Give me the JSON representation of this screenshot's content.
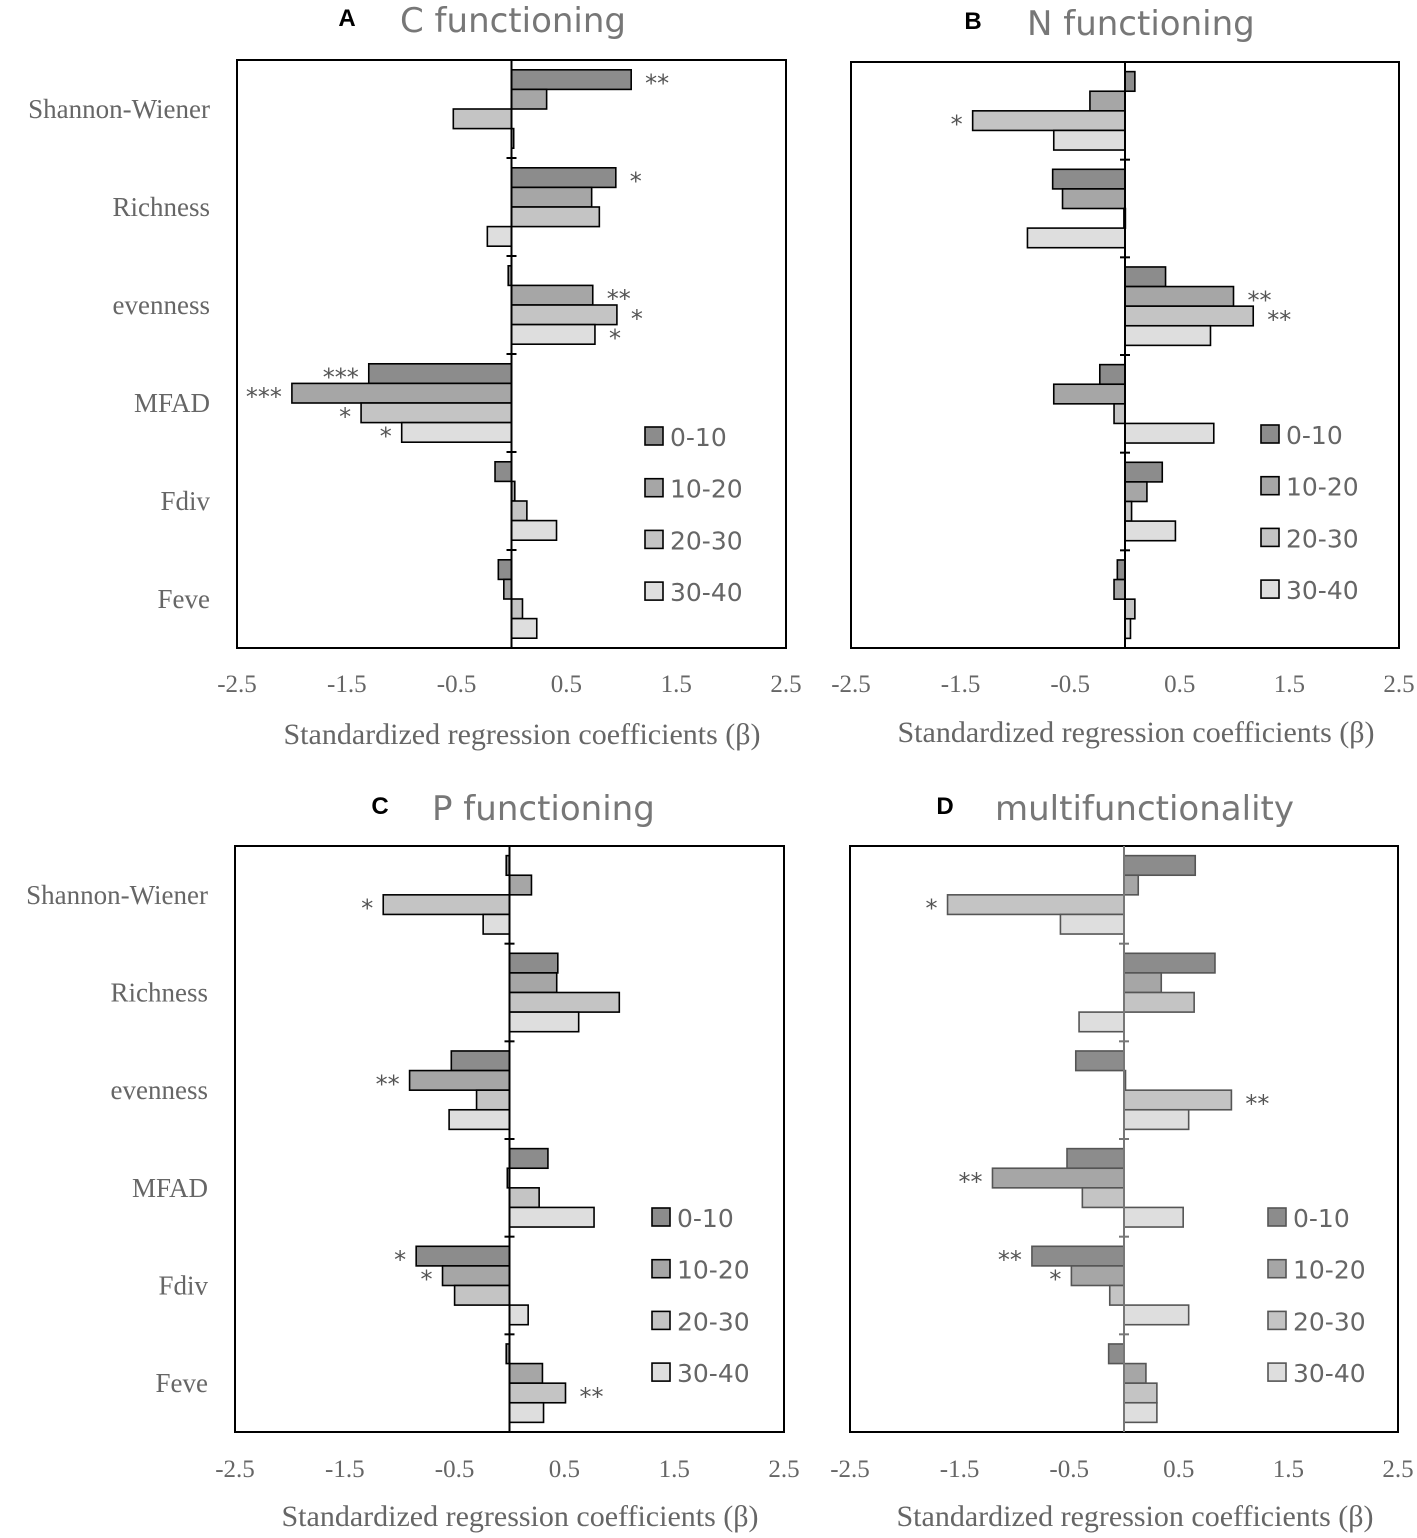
{
  "colors": {
    "series": [
      "#8c8c8c",
      "#a6a6a6",
      "#c4c4c4",
      "#dedede"
    ],
    "axis": "#000000",
    "axis_panel_d": "#777777",
    "text": "#666666"
  },
  "chart_data": [
    {
      "type": "bar",
      "orientation": "horizontal",
      "panel": "A",
      "title": "C functioning",
      "xlabel": "Standardized regression coefficients (β)",
      "xlim": [
        -2.5,
        2.5
      ],
      "xticks": [
        "-2.5",
        "-1.5",
        "-0.5",
        "0.5",
        "1.5",
        "2.5"
      ],
      "categories": [
        "Shannon-Wiener",
        "Richness",
        "evenness",
        "MFAD",
        "Fdiv",
        "Feve"
      ],
      "legend": [
        "0-10",
        "10-20",
        "20-30",
        "30-40"
      ],
      "series": [
        {
          "name": "0-10",
          "values": [
            1.09,
            0.95,
            -0.03,
            -1.3,
            -0.15,
            -0.12
          ]
        },
        {
          "name": "10-20",
          "values": [
            0.32,
            0.73,
            0.74,
            -2.0,
            0.03,
            -0.07
          ]
        },
        {
          "name": "20-30",
          "values": [
            -0.53,
            0.8,
            0.96,
            -1.37,
            0.14,
            0.1
          ]
        },
        {
          "name": "30-40",
          "values": [
            0.02,
            -0.22,
            0.76,
            -1.0,
            0.41,
            0.23
          ]
        }
      ],
      "significance": [
        [
          "**",
          "*",
          "",
          "***",
          "",
          ""
        ],
        [
          "",
          "",
          "**",
          "***",
          "",
          ""
        ],
        [
          "",
          "",
          "*",
          "*",
          "",
          ""
        ],
        [
          "",
          "",
          "*",
          "*",
          "",
          ""
        ]
      ]
    },
    {
      "type": "bar",
      "orientation": "horizontal",
      "panel": "B",
      "title": "N functioning",
      "xlabel": "Standardized regression coefficients (β)",
      "xlim": [
        -2.5,
        2.5
      ],
      "xticks": [
        "-2.5",
        "-1.5",
        "-0.5",
        "0.5",
        "1.5",
        "2.5"
      ],
      "categories": [
        "Shannon-Wiener",
        "Richness",
        "evenness",
        "MFAD",
        "Fdiv",
        "Feve"
      ],
      "legend": [
        "0-10",
        "10-20",
        "20-30",
        "30-40"
      ],
      "series": [
        {
          "name": "0-10",
          "values": [
            0.09,
            -0.66,
            0.37,
            -0.23,
            0.34,
            -0.07
          ]
        },
        {
          "name": "10-20",
          "values": [
            -0.32,
            -0.57,
            0.99,
            -0.65,
            0.2,
            -0.1
          ]
        },
        {
          "name": "20-30",
          "values": [
            -1.39,
            -0.01,
            1.17,
            -0.1,
            0.06,
            0.09
          ]
        },
        {
          "name": "30-40",
          "values": [
            -0.65,
            -0.89,
            0.78,
            0.81,
            0.46,
            0.05
          ]
        }
      ],
      "significance": [
        [
          "",
          "",
          "",
          "",
          "",
          ""
        ],
        [
          "",
          "",
          "**",
          "",
          "",
          ""
        ],
        [
          "*",
          "",
          "**",
          "",
          "",
          ""
        ],
        [
          "",
          "",
          "",
          "",
          "",
          ""
        ]
      ]
    },
    {
      "type": "bar",
      "orientation": "horizontal",
      "panel": "C",
      "title": "P functioning",
      "xlabel": "Standardized regression coefficients (β)",
      "xlim": [
        -2.5,
        2.5
      ],
      "xticks": [
        "-2.5",
        "-1.5",
        "-0.5",
        "0.5",
        "1.5",
        "2.5"
      ],
      "categories": [
        "Shannon-Wiener",
        "Richness",
        "evenness",
        "MFAD",
        "Fdiv",
        "Feve"
      ],
      "legend": [
        "0-10",
        "10-20",
        "20-30",
        "30-40"
      ],
      "series": [
        {
          "name": "0-10",
          "values": [
            -0.03,
            0.44,
            -0.53,
            0.35,
            -0.85,
            -0.03
          ]
        },
        {
          "name": "10-20",
          "values": [
            0.2,
            0.43,
            -0.91,
            -0.02,
            -0.61,
            0.3
          ]
        },
        {
          "name": "20-30",
          "values": [
            -1.15,
            1.0,
            -0.3,
            0.27,
            -0.5,
            0.51
          ]
        },
        {
          "name": "30-40",
          "values": [
            -0.24,
            0.63,
            -0.55,
            0.77,
            0.17,
            0.31
          ]
        }
      ],
      "significance": [
        [
          "",
          "",
          "",
          "",
          "*",
          ""
        ],
        [
          "",
          "",
          "**",
          "",
          "*",
          ""
        ],
        [
          "*",
          "",
          "",
          "",
          "",
          "**"
        ],
        [
          "",
          "",
          "",
          "",
          "",
          ""
        ]
      ]
    },
    {
      "type": "bar",
      "orientation": "horizontal",
      "panel": "D",
      "title": "multifunctionality",
      "xlabel": "Standardized regression coefficients (β)",
      "xlim": [
        -2.5,
        2.5
      ],
      "xticks": [
        "-2.5",
        "-1.5",
        "-0.5",
        "0.5",
        "1.5",
        "2.5"
      ],
      "categories": [
        "Shannon-Wiener",
        "Richness",
        "evenness",
        "MFAD",
        "Fdiv",
        "Feve"
      ],
      "legend": [
        "0-10",
        "10-20",
        "20-30",
        "30-40"
      ],
      "series": [
        {
          "name": "0-10",
          "values": [
            0.65,
            0.83,
            -0.44,
            -0.52,
            -0.84,
            -0.14
          ]
        },
        {
          "name": "10-20",
          "values": [
            0.13,
            0.34,
            0.01,
            -1.2,
            -0.48,
            0.2
          ]
        },
        {
          "name": "20-30",
          "values": [
            -1.61,
            0.64,
            0.98,
            -0.38,
            -0.13,
            0.3
          ]
        },
        {
          "name": "30-40",
          "values": [
            -0.58,
            -0.41,
            0.59,
            0.54,
            0.59,
            0.3
          ]
        }
      ],
      "significance": [
        [
          "",
          "",
          "",
          "",
          "**",
          ""
        ],
        [
          "",
          "",
          "",
          "**",
          "*",
          ""
        ],
        [
          "*",
          "",
          "**",
          "",
          "",
          ""
        ],
        [
          "",
          "",
          "",
          "",
          "",
          ""
        ]
      ]
    }
  ]
}
